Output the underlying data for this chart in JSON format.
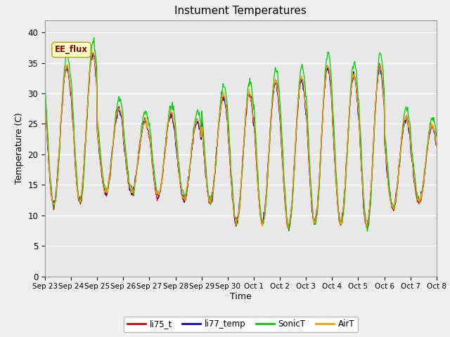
{
  "title": "Instument Temperatures",
  "xlabel": "Time",
  "ylabel": "Temperature (C)",
  "ylim": [
    0,
    42
  ],
  "yticks": [
    0,
    5,
    10,
    15,
    20,
    25,
    30,
    35,
    40
  ],
  "background_color": "#e8e8e8",
  "figure_facecolor": "#f0f0f0",
  "annotation_text": "EE_flux",
  "colors": {
    "li75_t": "#cc0000",
    "li77_temp": "#0000cc",
    "SonicT": "#00cc00",
    "AirT": "#ff9900"
  },
  "x_tick_labels": [
    "Sep 23",
    "Sep 24",
    "Sep 25",
    "Sep 26",
    "Sep 27",
    "Sep 28",
    "Sep 29",
    "Sep 30",
    "Oct 1",
    "Oct 2",
    "Oct 3",
    "Oct 4",
    "Oct 5",
    "Oct 6",
    "Oct 7",
    "Oct 8"
  ]
}
